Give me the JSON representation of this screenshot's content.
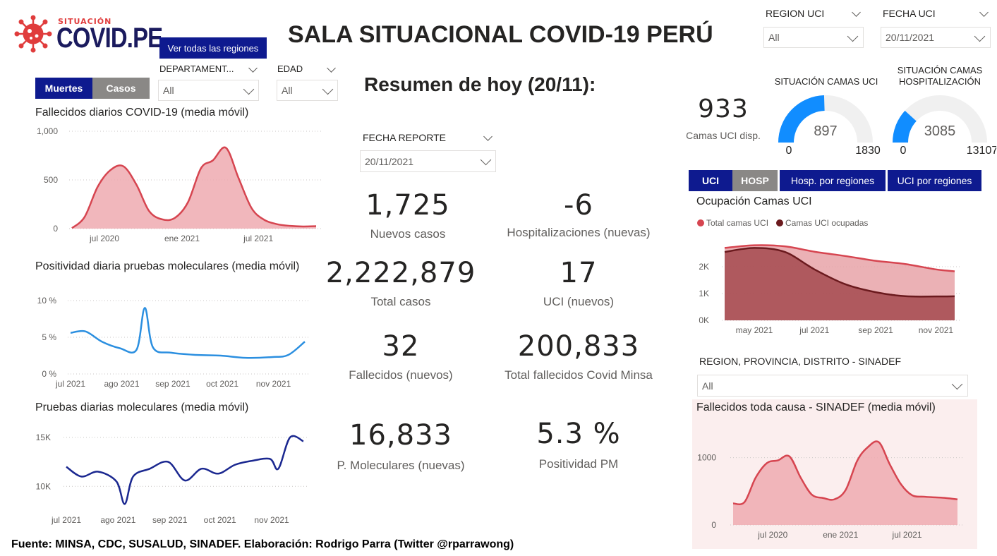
{
  "header": {
    "logo_small": "SITUACIÓN",
    "logo_big": "COVID.PE",
    "title": "SALA SITUACIONAL COVID-19 PERÚ",
    "all_regions_button": "Ver todas las regiones"
  },
  "toggles": {
    "muertes": "Muertes",
    "casos": "Casos"
  },
  "filters": {
    "departamento": {
      "label": "DEPARTAMENT...",
      "value": "All"
    },
    "edad": {
      "label": "EDAD",
      "value": "All"
    },
    "region_uci": {
      "label": "REGION UCI",
      "value": "All"
    },
    "fecha_uci": {
      "label": "FECHA UCI",
      "value": "20/11/2021"
    },
    "fecha_reporte": {
      "label": "FECHA REPORTE",
      "value": "20/11/2021"
    },
    "sinadef_region": {
      "label": "REGION, PROVINCIA, DISTRITO - SINADEF",
      "value": "All"
    }
  },
  "summary": {
    "title": "Resumen de hoy (20/11):",
    "kpis": [
      {
        "value": "1,725",
        "label": "Nuevos casos"
      },
      {
        "value": "-6",
        "label": "Hospitalizaciones (nuevas)"
      },
      {
        "value": "2,222,879",
        "label": "Total casos"
      },
      {
        "value": "17",
        "label": "UCI (nuevos)"
      },
      {
        "value": "32",
        "label": "Fallecidos  (nuevos)"
      },
      {
        "value": "200,833",
        "label": "Total fallecidos Covid Minsa"
      },
      {
        "value": "16,833",
        "label": "P. Moleculares (nuevas)"
      },
      {
        "value": "5.3 %",
        "label": "Positividad PM"
      }
    ]
  },
  "beds": {
    "uci_available_value": "933",
    "uci_available_label": "Camas UCI disp.",
    "gauge_uci": {
      "title": "SITUACIÓN CAMAS UCI",
      "value": 897,
      "min": 0,
      "max": 1830,
      "color": "#118dff"
    },
    "gauge_hosp": {
      "title": "SITUACIÓN CAMAS HOSPITALIZACIÓN",
      "value": 3085,
      "min": 0,
      "max": 13107,
      "color": "#118dff"
    }
  },
  "bed_tabs": [
    {
      "label": "UCI",
      "style": "navy"
    },
    {
      "label": "HOSP",
      "style": "gray"
    },
    {
      "label": "Hosp. por regiones",
      "style": "navy"
    },
    {
      "label": "UCI por regiones",
      "style": "navy"
    }
  ],
  "footer": "Fuente: MINSA, CDC, SUSALUD, SINADEF. Elaboración: Rodrigo Parra (Twitter @rparrawong)",
  "colors": {
    "navy": "#0e1a8f",
    "gray": "#8a8886",
    "red": "#d64550",
    "red_fill": "#eeaab0",
    "blue": "#2b8fe0",
    "dark_navy": "#1b2890",
    "dark_red": "#6b1a1e",
    "sinadef_bg": "#fbeeee"
  },
  "chart_data": [
    {
      "id": "deaths",
      "type": "area",
      "title": "Fallecidos diarios COVID-19 (media móvil)",
      "x": [
        "2020-04",
        "2020-05",
        "2020-06",
        "2020-07",
        "2020-08",
        "2020-09",
        "2020-10",
        "2020-11",
        "2020-12",
        "2021-01",
        "2021-02",
        "2021-03",
        "2021-04",
        "2021-05",
        "2021-06",
        "2021-07",
        "2021-08",
        "2021-09",
        "2021-10",
        "2021-11"
      ],
      "values": [
        5,
        120,
        430,
        600,
        640,
        450,
        180,
        95,
        110,
        270,
        620,
        700,
        830,
        520,
        210,
        90,
        45,
        28,
        22,
        25
      ],
      "x_ticks": [
        "jul 2020",
        "ene 2021",
        "jul 2021"
      ],
      "y_ticks": [
        "0",
        "500",
        "1,000"
      ],
      "ylim": [
        0,
        1000
      ],
      "color": "#d64550"
    },
    {
      "id": "positivity",
      "type": "line",
      "title": "Positividad diaria pruebas moleculares (media móvil)",
      "x": [
        "2021-07-01",
        "2021-07-10",
        "2021-07-20",
        "2021-07-31",
        "2021-08-10",
        "2021-08-15",
        "2021-08-20",
        "2021-08-31",
        "2021-09-15",
        "2021-09-30",
        "2021-10-15",
        "2021-10-31",
        "2021-11-10",
        "2021-11-20"
      ],
      "values": [
        5.6,
        5.8,
        4.4,
        3.5,
        3.3,
        9.0,
        3.6,
        2.9,
        2.6,
        2.5,
        2.2,
        2.3,
        2.6,
        4.4
      ],
      "x_ticks": [
        "jul 2021",
        "ago 2021",
        "sep 2021",
        "oct 2021",
        "nov 2021"
      ],
      "y_ticks": [
        "0 %",
        "5 %",
        "10 %"
      ],
      "ylim": [
        0,
        10
      ],
      "color": "#2b8fe0"
    },
    {
      "id": "tests",
      "type": "line",
      "title": "Pruebas diarias moleculares (media móvil)",
      "x": [
        "2021-07-01",
        "2021-07-10",
        "2021-07-20",
        "2021-07-31",
        "2021-08-05",
        "2021-08-10",
        "2021-08-20",
        "2021-08-31",
        "2021-09-10",
        "2021-09-20",
        "2021-09-30",
        "2021-10-10",
        "2021-10-20",
        "2021-10-31",
        "2021-11-05",
        "2021-11-12",
        "2021-11-20"
      ],
      "values": [
        12000,
        11000,
        11500,
        10500,
        8200,
        11000,
        11800,
        12500,
        10600,
        11800,
        11300,
        12200,
        12600,
        12800,
        11800,
        15000,
        14600
      ],
      "x_ticks": [
        "jul 2021",
        "ago 2021",
        "sep 2021",
        "oct 2021",
        "nov 2021"
      ],
      "y_ticks": [
        "10K",
        "15K"
      ],
      "ylim": [
        7500,
        16000
      ],
      "color": "#1b2890"
    },
    {
      "id": "uci_occupancy",
      "type": "area",
      "title": "Ocupación Camas UCI",
      "x": [
        "2021-04-01",
        "2021-05-01",
        "2021-06-01",
        "2021-07-01",
        "2021-08-01",
        "2021-09-01",
        "2021-10-01",
        "2021-11-01",
        "2021-11-20"
      ],
      "series": [
        {
          "name": "Total camas UCI",
          "values": [
            2700,
            2800,
            2760,
            2560,
            2400,
            2220,
            2100,
            1900,
            1830
          ]
        },
        {
          "name": "Camas UCI ocupadas",
          "values": [
            2550,
            2700,
            2550,
            1900,
            1350,
            1050,
            900,
            890,
            897
          ]
        }
      ],
      "x_ticks": [
        "may 2021",
        "jul 2021",
        "sep 2021",
        "nov 2021"
      ],
      "y_ticks": [
        "0K",
        "1K",
        "2K"
      ],
      "ylim": [
        0,
        3000
      ],
      "colors": [
        "#d64550",
        "#6b1a1e"
      ]
    },
    {
      "id": "sinadef",
      "type": "area",
      "title": "Fallecidos toda causa - SINADEF (media móvil)",
      "x": [
        "2020-03",
        "2020-04",
        "2020-05",
        "2020-06",
        "2020-07",
        "2020-08",
        "2020-09",
        "2020-10",
        "2020-11",
        "2020-12",
        "2021-01",
        "2021-02",
        "2021-03",
        "2021-04",
        "2021-05",
        "2021-06",
        "2021-07",
        "2021-08",
        "2021-09",
        "2021-10",
        "2021-11"
      ],
      "values": [
        320,
        340,
        700,
        920,
        960,
        1020,
        700,
        450,
        400,
        380,
        520,
        950,
        1150,
        1230,
        900,
        600,
        440,
        420,
        410,
        400,
        380
      ],
      "x_ticks": [
        "jul 2020",
        "ene 2021",
        "jul 2021"
      ],
      "y_ticks": [
        "0",
        "1000"
      ],
      "ylim": [
        0,
        1300
      ],
      "color": "#d64550"
    }
  ]
}
